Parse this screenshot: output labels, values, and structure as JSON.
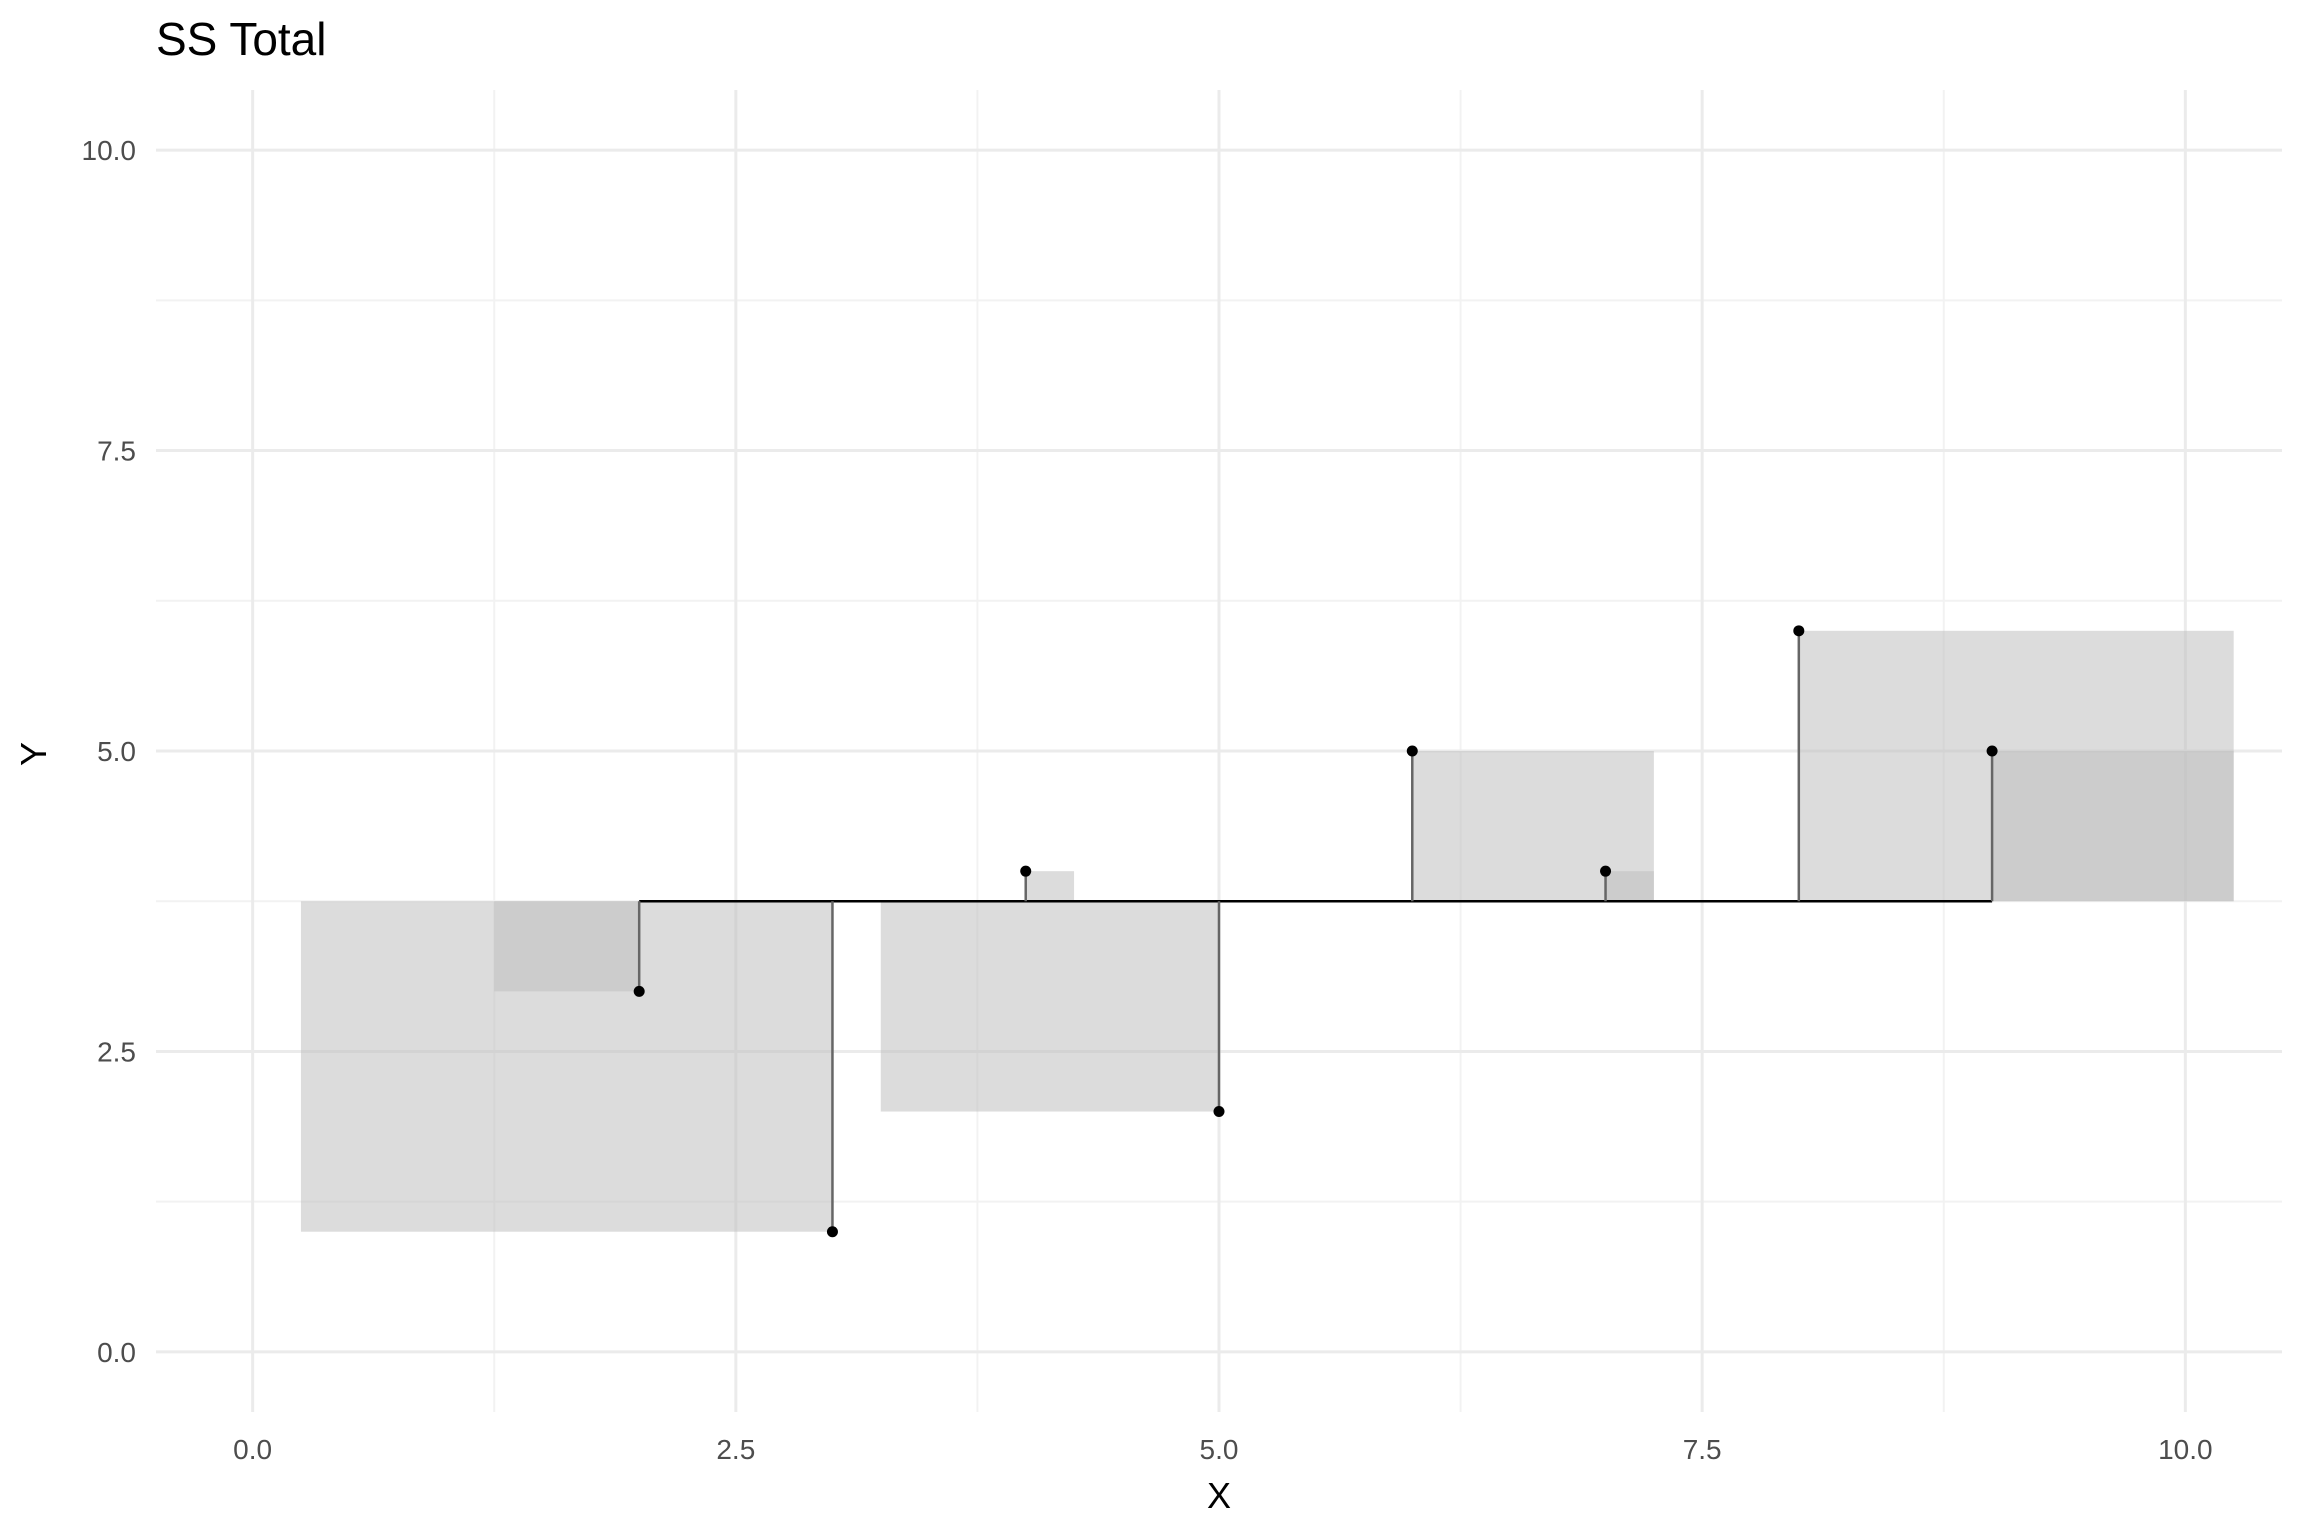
{
  "chart_data": {
    "type": "scatter",
    "title": "SS Total",
    "xlabel": "X",
    "ylabel": "Y",
    "xlim": [
      -0.5,
      10.5
    ],
    "ylim": [
      -0.5,
      10.5
    ],
    "x_ticks": [
      0,
      2.5,
      5,
      7.5,
      10
    ],
    "x_tick_labels": [
      "0.0",
      "2.5",
      "5.0",
      "7.5",
      "10.0"
    ],
    "y_ticks": [
      0,
      2.5,
      5,
      7.5,
      10
    ],
    "y_tick_labels": [
      "0.0",
      "2.5",
      "5.0",
      "7.5",
      "10.0"
    ],
    "grid": true,
    "mean_y": 3.75,
    "points": [
      {
        "x": 2,
        "y": 3
      },
      {
        "x": 3,
        "y": 1
      },
      {
        "x": 4,
        "y": 4
      },
      {
        "x": 5,
        "y": 2
      },
      {
        "x": 6,
        "y": 5
      },
      {
        "x": 7,
        "y": 4
      },
      {
        "x": 8,
        "y": 6
      },
      {
        "x": 9,
        "y": 5
      }
    ],
    "colors": {
      "point": "#000000",
      "square_fill": "#bfbfbf",
      "mean_line": "#000000",
      "residual_line": "#666666"
    }
  }
}
